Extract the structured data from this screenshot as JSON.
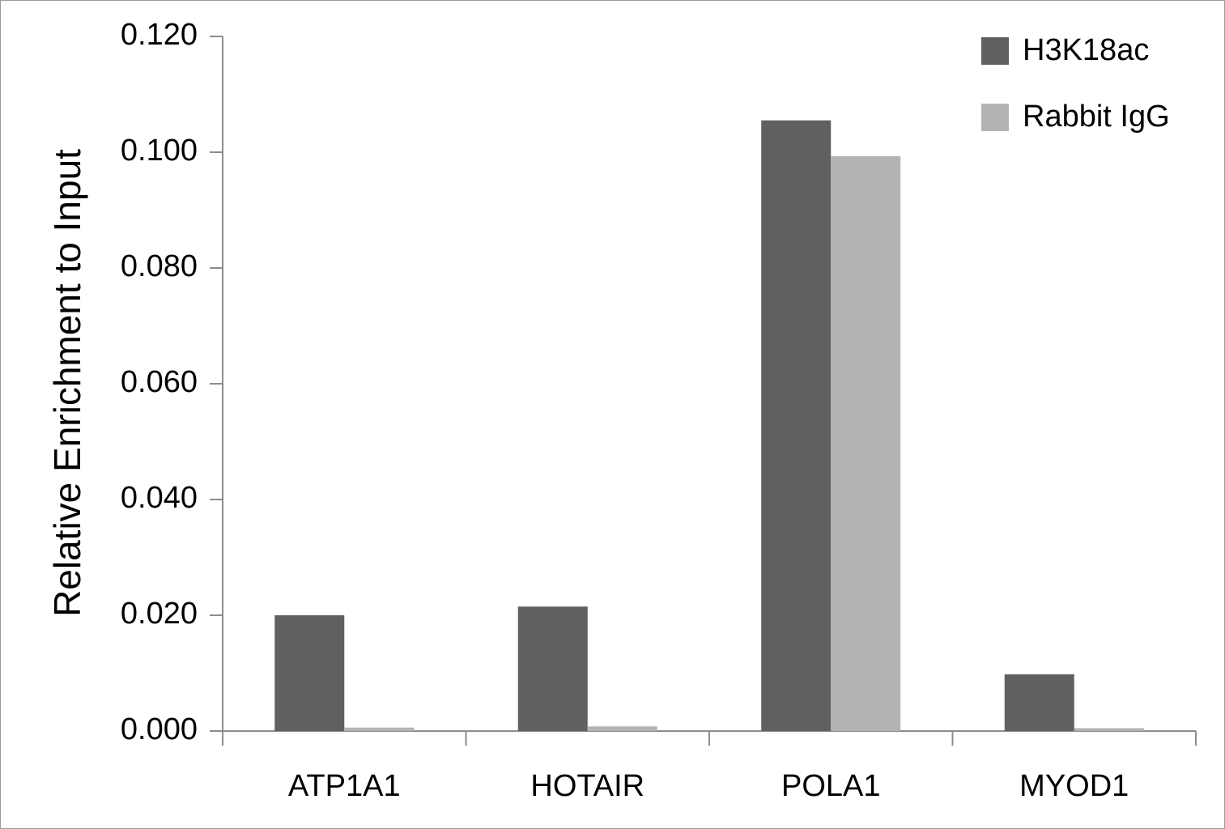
{
  "chart_data": {
    "type": "bar",
    "categories": [
      "ATP1A1",
      "HOTAIR",
      "POLA1",
      "MYOD1"
    ],
    "series": [
      {
        "name": "H3K18ac",
        "color": "#606060",
        "values": [
          0.02,
          0.0215,
          0.1055,
          0.0098
        ]
      },
      {
        "name": "Rabbit IgG",
        "color": "#b4b4b4",
        "values": [
          0.0006,
          0.0008,
          0.0993,
          0.0005
        ]
      }
    ],
    "title": "",
    "xlabel": "",
    "ylabel": "Relative Enrichment to Input",
    "ylim": [
      0,
      0.12
    ],
    "yticks": [
      "0.000",
      "0.020",
      "0.040",
      "0.060",
      "0.080",
      "0.100",
      "0.120"
    ],
    "grid": false,
    "legend_position": "top-right"
  }
}
